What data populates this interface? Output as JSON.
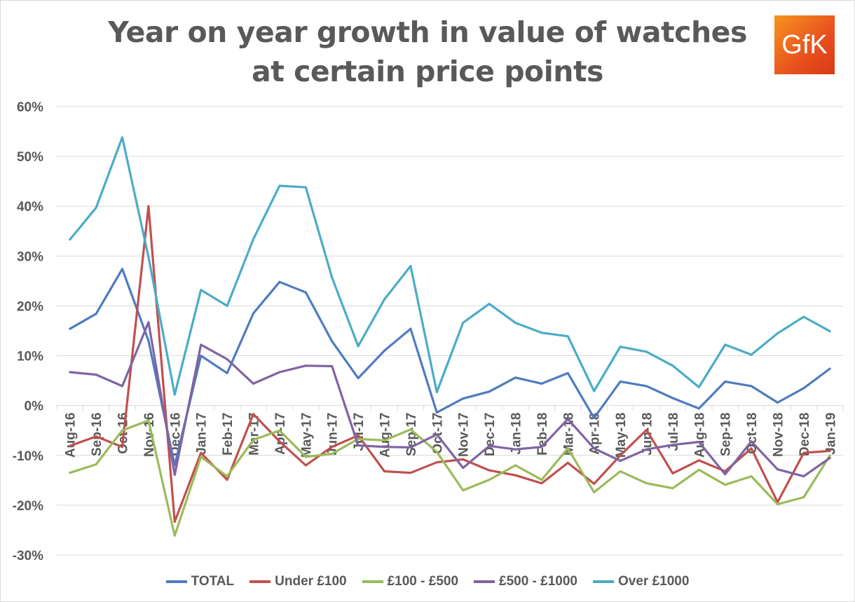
{
  "chart_data": {
    "type": "line",
    "title": "Year on year growth in value of watches at certain price points",
    "logo": "GfK",
    "xlabel": "",
    "ylabel": "",
    "ylim": [
      -30,
      60
    ],
    "yticks": [
      "-30%",
      "-20%",
      "-10%",
      "0%",
      "10%",
      "20%",
      "30%",
      "40%",
      "50%",
      "60%"
    ],
    "ytick_values": [
      -30,
      -20,
      -10,
      0,
      10,
      20,
      30,
      40,
      50,
      60
    ],
    "grid": true,
    "legend_position": "bottom",
    "categories": [
      "Aug-16",
      "Sep-16",
      "Oct-16",
      "Nov-16",
      "Dec-16",
      "Jan-17",
      "Feb-17",
      "Mar-17",
      "Apr-17",
      "May-17",
      "Jun-17",
      "Jul-17",
      "Aug-17",
      "Sep-17",
      "Oct-17",
      "Nov-17",
      "Dec-17",
      "Jan-18",
      "Feb-18",
      "Mar-18",
      "Apr-18",
      "May-18",
      "Jun-18",
      "Jul-18",
      "Aug-18",
      "Sep-18",
      "Oct-18",
      "Nov-18",
      "Dec-18",
      "Jan-19"
    ],
    "series": [
      {
        "name": "TOTAL",
        "color": "#4F7BC0",
        "values": [
          15.4,
          18.4,
          27.4,
          13,
          -12,
          10,
          6.5,
          18.5,
          24.8,
          22.7,
          12.9,
          5.5,
          11,
          15.4,
          -1.4,
          1.4,
          2.8,
          5.6,
          4.4,
          6.5,
          -2.5,
          4.8,
          3.9,
          1.5,
          -0.6,
          4.8,
          3.9,
          0.6,
          3.5,
          7.4
        ]
      },
      {
        "name": "Under £100",
        "color": "#C0504D",
        "values": [
          -8.1,
          -6.2,
          -8.3,
          40,
          -23.3,
          -9.5,
          -14.9,
          -1.7,
          -7.2,
          -12,
          -8.3,
          -6,
          -13.2,
          -13.5,
          -11.4,
          -10.8,
          -13,
          -14,
          -15.6,
          -11.5,
          -15.7,
          -10,
          -4.9,
          -13.6,
          -11,
          -13.2,
          -8.6,
          -19.4,
          -9.5,
          -9.1
        ]
      },
      {
        "name": "£100 - £500",
        "color": "#9BBB59",
        "values": [
          -13.5,
          -11.8,
          -5,
          -3,
          -26.1,
          -10.3,
          -14.2,
          -6.9,
          -5,
          -10.3,
          -9.7,
          -6.7,
          -7,
          -4.8,
          -9.3,
          -17,
          -14.9,
          -12,
          -14.9,
          -8.6,
          -17.4,
          -13.2,
          -15.6,
          -16.6,
          -12.9,
          -15.9,
          -14.2,
          -19.8,
          -18.4,
          -10
        ]
      },
      {
        "name": "£500 - £1000",
        "color": "#8064A2",
        "values": [
          6.7,
          6.2,
          3.9,
          16.7,
          -13.9,
          12.2,
          9.3,
          4.4,
          6.7,
          8,
          7.9,
          -8,
          -8.3,
          -8.4,
          -5.8,
          -12.5,
          -8.1,
          -8.8,
          -8.3,
          -2.7,
          -8.6,
          -11.1,
          -8.8,
          -7.9,
          -7.3,
          -13.8,
          -7.2,
          -12.8,
          -14.2,
          -10.5
        ]
      },
      {
        "name": "Over £1000",
        "color": "#4BACC6",
        "values": [
          33.3,
          39.7,
          53.8,
          29.8,
          2.2,
          23.2,
          20,
          33.4,
          44.1,
          43.8,
          25.7,
          11.9,
          21.3,
          28,
          2.7,
          16.6,
          20.4,
          16.6,
          14.6,
          13.9,
          2.9,
          11.8,
          10.8,
          8,
          3.7,
          12.2,
          10.2,
          14.5,
          17.8,
          14.9
        ]
      }
    ]
  }
}
